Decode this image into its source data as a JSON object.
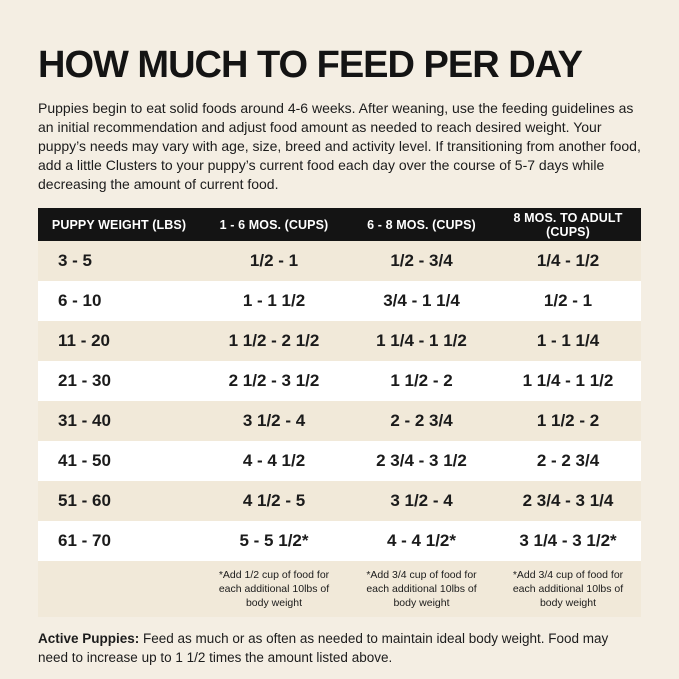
{
  "page": {
    "title": "HOW MUCH TO FEED PER DAY",
    "intro": "Puppies begin to eat solid foods around 4-6 weeks. After weaning, use the feeding guidelines as an initial recommendation and adjust food amount as needed to reach desired weight. Your puppy’s needs may vary with age, size, breed and activity level. If transitioning from another food, add a little Clusters to your puppy’s current food each day over the course of 5-7 days while decreasing the amount of current food.",
    "footer_label": "Active Puppies:",
    "footer_text": " Feed as much or as often as needed to maintain ideal body weight. Food may need to increase up to 1 1/2 times the amount listed above."
  },
  "colors": {
    "background": "#f4eee3",
    "stripe_row": "#f1e9d9",
    "header_bg": "#141414",
    "header_text": "#ffffff"
  },
  "chart_data": {
    "type": "table",
    "title": "How Much To Feed Per Day",
    "columns": [
      "PUPPY WEIGHT (LBS)",
      "1 - 6 MOS. (CUPS)",
      "6 - 8 MOS. (CUPS)",
      "8 MOS. TO ADULT (CUPS)"
    ],
    "rows": [
      [
        "3 - 5",
        "1/2 - 1",
        "1/2 - 3/4",
        "1/4 - 1/2"
      ],
      [
        "6 - 10",
        "1 - 1 1/2",
        "3/4 - 1 1/4",
        "1/2 - 1"
      ],
      [
        "11 - 20",
        "1 1/2 - 2 1/2",
        "1 1/4 - 1 1/2",
        "1 - 1 1/4"
      ],
      [
        "21 - 30",
        "2 1/2 - 3 1/2",
        "1 1/2 - 2",
        "1 1/4 - 1 1/2"
      ],
      [
        "31 - 40",
        "3 1/2 - 4",
        "2 - 2 3/4",
        "1 1/2 - 2"
      ],
      [
        "41 - 50",
        "4 - 4 1/2",
        "2 3/4 - 3 1/2",
        "2 - 2 3/4"
      ],
      [
        "51 - 60",
        "4 1/2 - 5",
        "3 1/2 - 4",
        "2 3/4 - 3 1/4"
      ],
      [
        "61 - 70",
        "5 - 5 1/2*",
        "4 - 4 1/2*",
        "3 1/4 - 3 1/2*"
      ]
    ],
    "footnotes": [
      "*Add 1/2 cup of food for each additional 10lbs of body weight",
      "*Add 3/4 cup of food for each additional 10lbs of body weight",
      "*Add 3/4 cup of food for each additional 10lbs of body weight"
    ]
  }
}
